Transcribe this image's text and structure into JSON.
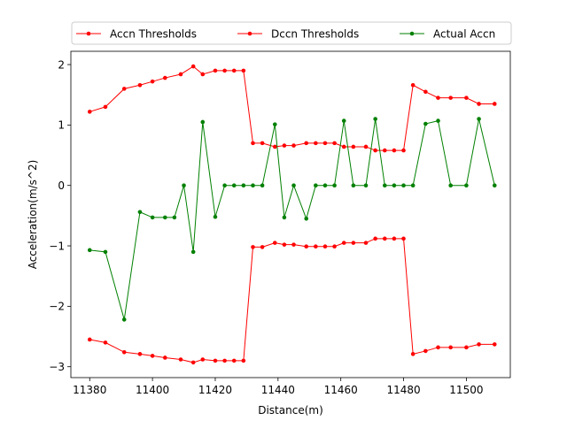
{
  "chart_data": {
    "type": "line",
    "title": "",
    "xlabel": "Distance(m)",
    "ylabel": "Acceleration(m/s^2)",
    "xlim": [
      11374,
      11514
    ],
    "ylim": [
      -3.18,
      2.22
    ],
    "xticks": [
      11380,
      11400,
      11420,
      11440,
      11460,
      11480,
      11500
    ],
    "yticks": [
      -3,
      -2,
      -1,
      0,
      1,
      2
    ],
    "ytick_labels": [
      "−3",
      "−2",
      "−1",
      "0",
      "1",
      "2"
    ],
    "grid": false,
    "legend_position": "top",
    "series": [
      {
        "name": "Accn Thresholds",
        "color": "#ff0000",
        "x": [
          11380,
          11385,
          11391,
          11396,
          11400,
          11404,
          11409,
          11413,
          11416,
          11420,
          11423,
          11426,
          11429,
          11432,
          11435,
          11439,
          11442,
          11445,
          11449,
          11452,
          11455,
          11458,
          11461,
          11464,
          11468,
          11471,
          11474,
          11477,
          11480,
          11483,
          11487,
          11491,
          11495,
          11500,
          11504,
          11509
        ],
        "y": [
          1.22,
          1.3,
          1.6,
          1.66,
          1.72,
          1.78,
          1.84,
          1.97,
          1.84,
          1.9,
          1.9,
          1.9,
          1.9,
          0.7,
          0.7,
          0.64,
          0.66,
          0.66,
          0.7,
          0.7,
          0.7,
          0.7,
          0.64,
          0.64,
          0.64,
          0.58,
          0.58,
          0.58,
          0.58,
          1.66,
          1.55,
          1.45,
          1.45,
          1.45,
          1.35,
          1.35
        ]
      },
      {
        "name": "Dccn Thresholds",
        "color": "#ff0000",
        "x": [
          11380,
          11385,
          11391,
          11396,
          11400,
          11404,
          11409,
          11413,
          11416,
          11420,
          11423,
          11426,
          11429,
          11432,
          11435,
          11439,
          11442,
          11445,
          11449,
          11452,
          11455,
          11458,
          11461,
          11464,
          11468,
          11471,
          11474,
          11477,
          11480,
          11483,
          11487,
          11491,
          11495,
          11500,
          11504,
          11509
        ],
        "y": [
          -2.55,
          -2.6,
          -2.76,
          -2.79,
          -2.82,
          -2.85,
          -2.88,
          -2.93,
          -2.88,
          -2.9,
          -2.9,
          -2.9,
          -2.9,
          -1.02,
          -1.02,
          -0.95,
          -0.98,
          -0.98,
          -1.01,
          -1.01,
          -1.01,
          -1.01,
          -0.95,
          -0.95,
          -0.95,
          -0.88,
          -0.88,
          -0.88,
          -0.88,
          -2.79,
          -2.74,
          -2.68,
          -2.68,
          -2.68,
          -2.63,
          -2.63
        ]
      },
      {
        "name": "Actual Accn",
        "color": "#008000",
        "x": [
          11380,
          11385,
          11391,
          11396,
          11400,
          11404,
          11407,
          11410,
          11413,
          11416,
          11420,
          11423,
          11426,
          11429,
          11432,
          11435,
          11439,
          11442,
          11445,
          11449,
          11452,
          11455,
          11458,
          11461,
          11464,
          11468,
          11471,
          11474,
          11477,
          11480,
          11483,
          11487,
          11491,
          11495,
          11500,
          11504,
          11509
        ],
        "y": [
          -1.07,
          -1.1,
          -2.22,
          -0.44,
          -0.53,
          -0.53,
          -0.53,
          0.0,
          -1.1,
          1.05,
          -0.52,
          0.0,
          0.0,
          0.0,
          0.0,
          0.0,
          1.01,
          -0.53,
          0.0,
          -0.55,
          0.0,
          0.0,
          0.0,
          1.07,
          0.0,
          0.0,
          1.1,
          0.0,
          0.0,
          0.0,
          0.0,
          1.02,
          1.07,
          0.0,
          0.0,
          1.1,
          0.0
        ]
      }
    ]
  }
}
